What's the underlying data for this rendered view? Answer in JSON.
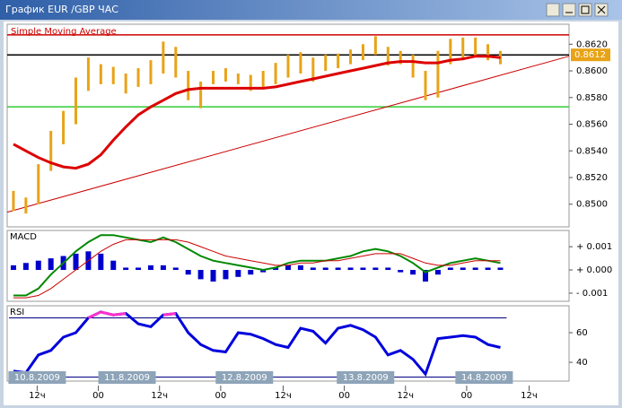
{
  "window": {
    "title": "График EUR /GBP  ЧАС"
  },
  "time_axis": {
    "xlim": [
      -0.5,
      44.5
    ],
    "xticks": [
      {
        "value": 1.9,
        "label": "12ч"
      },
      {
        "value": 6.8,
        "label": "00"
      },
      {
        "value": 11.7,
        "label": "12ч"
      },
      {
        "value": 16.6,
        "label": "00"
      },
      {
        "value": 21.6,
        "label": "12ч"
      },
      {
        "value": 26.5,
        "label": "00"
      },
      {
        "value": 31.4,
        "label": "12ч"
      },
      {
        "value": 36.3,
        "label": "00"
      },
      {
        "value": 41.3,
        "label": "12ч"
      }
    ],
    "dates": [
      {
        "value": 1.9,
        "label": "10.8.2009"
      },
      {
        "value": 9.1,
        "label": "11.8.2009"
      },
      {
        "value": 18.5,
        "label": "12.8.2009"
      },
      {
        "value": 28.2,
        "label": "13.8.2009"
      },
      {
        "value": 37.7,
        "label": "14.8.2009"
      }
    ]
  },
  "chart_data": [
    {
      "type": "candlestick",
      "annotation": "Simple  Moving  Average",
      "ylim": [
        0.8483,
        0.8635
      ],
      "yticks": [
        {
          "value": 0.85,
          "label": "0.8500"
        },
        {
          "value": 0.852,
          "label": "0.8520"
        },
        {
          "value": 0.854,
          "label": "0.8540"
        },
        {
          "value": 0.856,
          "label": "0.8560"
        },
        {
          "value": 0.858,
          "label": "0.8580"
        },
        {
          "value": 0.86,
          "label": "0.8600"
        },
        {
          "value": 0.862,
          "label": "0.8620"
        }
      ],
      "candle_color": "#e8a317",
      "high": [
        0.851,
        0.8505,
        0.853,
        0.8555,
        0.857,
        0.8595,
        0.861,
        0.8605,
        0.8603,
        0.8598,
        0.8602,
        0.8608,
        0.8622,
        0.8618,
        0.86,
        0.8592,
        0.86,
        0.8602,
        0.8598,
        0.8597,
        0.86,
        0.8606,
        0.8612,
        0.8614,
        0.861,
        0.8612,
        0.8613,
        0.8616,
        0.862,
        0.8626,
        0.8618,
        0.8615,
        0.8612,
        0.86,
        0.8615,
        0.8624,
        0.8625,
        0.8625,
        0.862,
        0.8615
      ],
      "low": [
        0.8495,
        0.8493,
        0.85,
        0.8525,
        0.8545,
        0.856,
        0.8585,
        0.859,
        0.859,
        0.8583,
        0.8588,
        0.859,
        0.8598,
        0.8595,
        0.8578,
        0.8572,
        0.859,
        0.8592,
        0.859,
        0.8585,
        0.8588,
        0.859,
        0.8595,
        0.8598,
        0.8592,
        0.86,
        0.8602,
        0.8605,
        0.8608,
        0.8612,
        0.8604,
        0.8605,
        0.8595,
        0.8578,
        0.858,
        0.8605,
        0.8608,
        0.861,
        0.8608,
        0.8605
      ],
      "sma": {
        "color": "#dd0000",
        "values": [
          0.8545,
          0.854,
          0.8535,
          0.8531,
          0.8528,
          0.8527,
          0.853,
          0.8537,
          0.8548,
          0.8558,
          0.8567,
          0.8573,
          0.8578,
          0.8583,
          0.8586,
          0.8587,
          0.8587,
          0.8587,
          0.8587,
          0.8587,
          0.8587,
          0.8588,
          0.859,
          0.8592,
          0.8594,
          0.8596,
          0.8598,
          0.86,
          0.8602,
          0.8604,
          0.8606,
          0.8607,
          0.8607,
          0.8606,
          0.8606,
          0.8608,
          0.8609,
          0.8611,
          0.8611,
          0.861
        ]
      },
      "levels": [
        {
          "value": 0.8627,
          "color": "#cc0000"
        },
        {
          "value": 0.8612,
          "color": "#000000"
        },
        {
          "value": 0.8573,
          "color": "#33cc33"
        }
      ],
      "trendline": {
        "x": [
          -0.5,
          44.5
        ],
        "y": [
          0.8494,
          0.8611
        ],
        "color": "#cc0000"
      },
      "last_price": {
        "value": 0.8612,
        "label": "0.8612"
      }
    },
    {
      "type": "macd",
      "label": "MACD",
      "ylim": [
        -0.00135,
        0.0017
      ],
      "yticks": [
        {
          "value": 0.001,
          "label": "+ 0.001"
        },
        {
          "value": 0,
          "label": "+ 0.000"
        },
        {
          "value": -0.001,
          "label": "- 0.001"
        }
      ],
      "histogram": {
        "color": "#0000cc",
        "values": [
          0.0002,
          0.0003,
          0.0004,
          0.0005,
          0.0006,
          0.0007,
          0.0008,
          0.0007,
          0.0004,
          0.0001,
          0.0001,
          0.0002,
          0.0002,
          0.0001,
          -0.0002,
          -0.0004,
          -0.0005,
          -0.0004,
          -0.0003,
          -0.0002,
          -0.0001,
          0.0001,
          0.0002,
          0.0002,
          0.0001,
          0.0001,
          0.0001,
          0.0001,
          0.0001,
          0.0001,
          0.0001,
          -0.0001,
          -0.0002,
          -0.0005,
          -0.0002,
          0.0001,
          0.0001,
          0.0001,
          0.0001,
          0.0001
        ]
      },
      "macd": {
        "color": "#008800",
        "values": [
          -0.0011,
          -0.0011,
          -0.0008,
          -0.0002,
          0.0003,
          0.0008,
          0.0012,
          0.0015,
          0.0015,
          0.0014,
          0.0013,
          0.0012,
          0.0014,
          0.0012,
          0.0009,
          0.0006,
          0.0004,
          0.0003,
          0.0002,
          0.0001,
          0.0,
          0.0001,
          0.0003,
          0.0004,
          0.0004,
          0.0004,
          0.0005,
          0.0006,
          0.0008,
          0.0009,
          0.0008,
          0.0006,
          0.0003,
          -0.0001,
          0.0001,
          0.0003,
          0.0004,
          0.0005,
          0.0004,
          0.0003
        ]
      },
      "signal": {
        "color": "#cc0000",
        "values": [
          -0.0012,
          -0.0012,
          -0.0011,
          -0.0008,
          -0.0004,
          0.0,
          0.0004,
          0.0008,
          0.0011,
          0.0013,
          0.0013,
          0.0013,
          0.0013,
          0.0013,
          0.0012,
          0.001,
          0.0008,
          0.0006,
          0.0005,
          0.0004,
          0.0003,
          0.0002,
          0.0002,
          0.0003,
          0.0003,
          0.0004,
          0.0004,
          0.0005,
          0.0006,
          0.0007,
          0.0007,
          0.0007,
          0.0005,
          0.0003,
          0.0002,
          0.0002,
          0.0003,
          0.0004,
          0.0004,
          0.0004
        ]
      }
    },
    {
      "type": "line",
      "label": "RSI",
      "ylim": [
        27.3,
        78.2
      ],
      "yticks": [
        40,
        60
      ],
      "levels": [
        70,
        30
      ],
      "level_color": "#000080",
      "color": "#0000dd",
      "overbought_color": "#ff33cc",
      "values": [
        34,
        33,
        45,
        48,
        57,
        60,
        70,
        74,
        72,
        73,
        66,
        64,
        72,
        73,
        60,
        52,
        48,
        47,
        60,
        59,
        56,
        52,
        50,
        63,
        61,
        53,
        63,
        65,
        62,
        57,
        45,
        48,
        42,
        32,
        56,
        57,
        58,
        57,
        52,
        50
      ]
    }
  ]
}
